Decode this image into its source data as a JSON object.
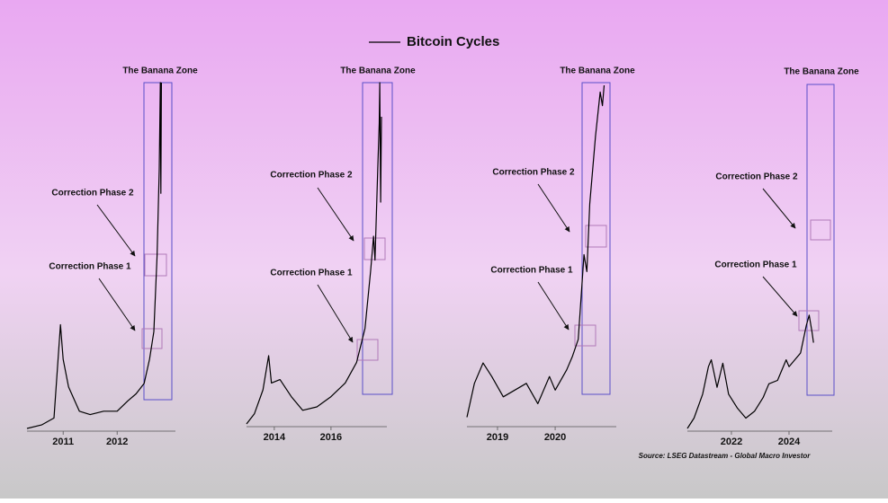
{
  "header": {
    "title": "Bitcoin Cycles"
  },
  "footer": {
    "source": "Source: LSEG Datastream - Global Macro Investor"
  },
  "chart_data": [
    {
      "type": "line",
      "color": "#000000",
      "x": [
        2010.33,
        2010.6,
        2010.83,
        2010.95,
        2011.0,
        2011.1,
        2011.3,
        2011.5,
        2011.75,
        2012.0,
        2012.2,
        2012.35,
        2012.5,
        2012.6,
        2012.68,
        2012.74,
        2012.78,
        2012.8,
        2012.81,
        2012.82
      ],
      "values": [
        0,
        1,
        3,
        30,
        20,
        12,
        5,
        4,
        5,
        5,
        8,
        10,
        13,
        20,
        28,
        50,
        75,
        100,
        68,
        100
      ],
      "xlim": [
        2010.33,
        2013.08
      ],
      "xticks": [
        2011,
        2012
      ],
      "ylim": [
        0,
        100
      ],
      "annotations": [
        "The Banana Zone",
        "Correction Phase 2",
        "Correction Phase 1"
      ]
    },
    {
      "type": "line",
      "color": "#000000",
      "x": [
        2013.02,
        2013.3,
        2013.6,
        2013.8,
        2013.9,
        2014.2,
        2014.6,
        2015.0,
        2015.5,
        2016.0,
        2016.5,
        2016.9,
        2017.2,
        2017.4,
        2017.5,
        2017.55,
        2017.65,
        2017.7,
        2017.72,
        2017.75,
        2017.78
      ],
      "values": [
        0,
        3,
        10,
        20,
        12,
        13,
        8,
        4,
        5,
        8,
        12,
        18,
        28,
        45,
        55,
        48,
        75,
        88,
        100,
        65,
        90
      ],
      "xlim": [
        2013.02,
        2017.97
      ],
      "xticks": [
        2014,
        2016
      ],
      "ylim": [
        0,
        100
      ],
      "annotations": [
        "The Banana Zone",
        "Correction Phase 2",
        "Correction Phase 1"
      ]
    },
    {
      "type": "line",
      "color": "#000000",
      "x": [
        2018.47,
        2018.6,
        2018.75,
        2018.9,
        2019.1,
        2019.3,
        2019.5,
        2019.7,
        2019.9,
        2020.0,
        2020.2,
        2020.3,
        2020.4,
        2020.5,
        2020.55,
        2020.6,
        2020.7,
        2020.78,
        2020.82,
        2020.85
      ],
      "values": [
        2,
        12,
        18,
        14,
        8,
        10,
        12,
        6,
        14,
        10,
        16,
        20,
        25,
        50,
        45,
        65,
        85,
        98,
        94,
        100
      ],
      "xlim": [
        2018.47,
        2021.06
      ],
      "xticks": [
        2019,
        2020
      ],
      "ylim": [
        0,
        100
      ],
      "annotations": [
        "The Banana Zone",
        "Correction Phase 2",
        "Correction Phase 1"
      ]
    },
    {
      "type": "line",
      "color": "#000000",
      "x": [
        2020.47,
        2020.7,
        2021.0,
        2021.2,
        2021.3,
        2021.5,
        2021.7,
        2021.9,
        2022.2,
        2022.5,
        2022.8,
        2023.1,
        2023.3,
        2023.6,
        2023.9,
        2024.0,
        2024.2,
        2024.4,
        2024.6,
        2024.7,
        2024.8,
        2024.85
      ],
      "values": [
        0,
        3,
        10,
        18,
        20,
        12,
        19,
        10,
        6,
        3,
        5,
        9,
        13,
        14,
        20,
        18,
        20,
        22,
        30,
        33,
        28,
        25
      ],
      "xlim": [
        2020.47,
        2025.5
      ],
      "xticks": [
        2022,
        2024
      ],
      "ylim": [
        0,
        100
      ],
      "annotations": [
        "The Banana Zone",
        "Correction Phase 2",
        "Correction Phase 1"
      ]
    }
  ]
}
